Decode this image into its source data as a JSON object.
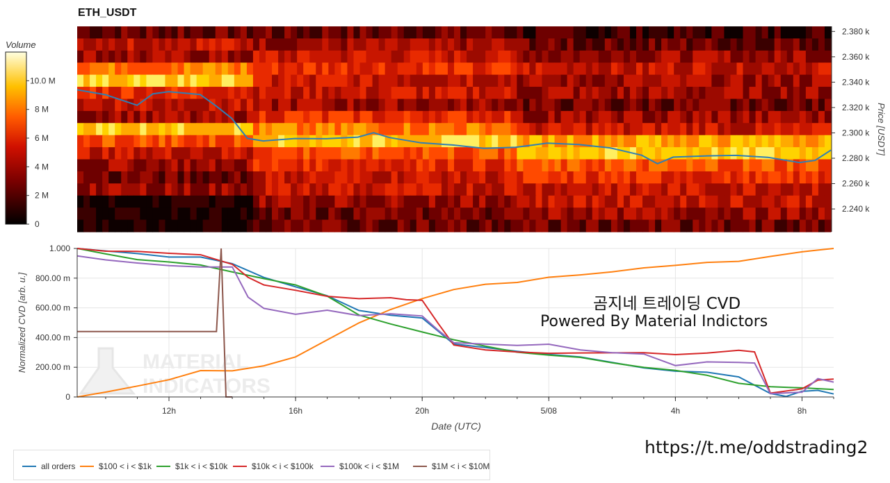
{
  "title": "ETH_USDT",
  "colorbar": {
    "title": "Volume",
    "ticks": [
      "0",
      "2 M",
      "4 M",
      "6 M",
      "8 M",
      "10.0 M"
    ],
    "tick_values": [
      0,
      2,
      4,
      6,
      8,
      10
    ]
  },
  "heatmap": {
    "ylabel": "Price [USDT]",
    "y_ticks": [
      "2.240 k",
      "2.260 k",
      "2.280 k",
      "2.300 k",
      "2.320 k",
      "2.340 k",
      "2.360 k",
      "2.380 k"
    ],
    "y_tick_values": [
      2240,
      2260,
      2280,
      2300,
      2320,
      2340,
      2360,
      2380
    ],
    "price_line_color": "#2f7fb5"
  },
  "cvd": {
    "ylabel": "Normalized CVD [arb. u.]",
    "xlabel": "Date (UTC)",
    "y_ticks": [
      "0",
      "200.00 m",
      "400.00 m",
      "600.00 m",
      "800.00 m",
      "1.000"
    ],
    "y_tick_values": [
      0,
      0.2,
      0.4,
      0.6,
      0.8,
      1.0
    ],
    "x_ticks": [
      "12h",
      "16h",
      "20h",
      "5/08",
      "4h",
      "8h"
    ]
  },
  "watermark": {
    "line1": "MATERIAL",
    "line2": "INDICATORS"
  },
  "annotation": {
    "line1": "곰지네 트레이딩 CVD",
    "line2": "Powered By Material Indictors"
  },
  "url": "https://t.me/oddstrading2",
  "chart_data": [
    {
      "type": "heatmap",
      "title": "ETH_USDT",
      "ylabel": "Price [USDT]",
      "ylim": [
        2222,
        2384
      ],
      "colorbar_label": "Volume",
      "colorbar_range": [
        0,
        12000000
      ],
      "price_series": {
        "x_hours": [
          9.1,
          10,
          11,
          11.5,
          12,
          13,
          13.5,
          14,
          14.5,
          15,
          16,
          17,
          18,
          18.5,
          19,
          20,
          21,
          22,
          23,
          24,
          25,
          26,
          27,
          27.5,
          28,
          29,
          30,
          31,
          32,
          32.5,
          33
        ],
        "y": [
          2334,
          2330,
          2322,
          2330,
          2332,
          2330,
          2322,
          2312,
          2295,
          2294,
          2296,
          2295,
          2297,
          2300,
          2296,
          2292,
          2290,
          2288,
          2288,
          2292,
          2291,
          2288,
          2283,
          2276,
          2281,
          2282,
          2282,
          2280,
          2276,
          2279,
          2286
        ]
      }
    },
    {
      "type": "line",
      "title": "",
      "xlabel": "Date (UTC)",
      "ylabel": "Normalized CVD [arb. u.]",
      "ylim": [
        0,
        1.0
      ],
      "x_tick_labels": [
        "12h",
        "16h",
        "20h",
        "5/08",
        "4h",
        "8h"
      ],
      "x_tick_hours": [
        12,
        16,
        20,
        24,
        28,
        32
      ],
      "xlim_hours": [
        9.1,
        33.0
      ],
      "legend_position": "bottom-left",
      "series": [
        {
          "name": "all orders",
          "color": "#1f77b4",
          "x": [
            9.1,
            10,
            11,
            12,
            13,
            14,
            15,
            16,
            17,
            18,
            19,
            20,
            21,
            22,
            23,
            24,
            25,
            26,
            27,
            28,
            29,
            30,
            31,
            31.5,
            32,
            32.5,
            33
          ],
          "y": [
            1.0,
            0.98,
            0.96,
            0.95,
            0.94,
            0.9,
            0.8,
            0.75,
            0.68,
            0.58,
            0.55,
            0.54,
            0.36,
            0.33,
            0.31,
            0.29,
            0.26,
            0.24,
            0.2,
            0.18,
            0.16,
            0.13,
            0.02,
            0.01,
            0.04,
            0.05,
            0.02
          ]
        },
        {
          "name": "$100 < i < $1k",
          "color": "#ff7f0e",
          "x": [
            9.1,
            10,
            11,
            12,
            13,
            14,
            15,
            16,
            17,
            18,
            19,
            20,
            21,
            22,
            23,
            24,
            25,
            26,
            27,
            28,
            29,
            30,
            31,
            32,
            32.5,
            33
          ],
          "y": [
            0.0,
            0.03,
            0.07,
            0.12,
            0.17,
            0.18,
            0.21,
            0.27,
            0.38,
            0.5,
            0.58,
            0.66,
            0.72,
            0.75,
            0.77,
            0.8,
            0.83,
            0.85,
            0.87,
            0.88,
            0.9,
            0.92,
            0.94,
            0.98,
            0.99,
            1.0
          ]
        },
        {
          "name": "$1k < i < $10k",
          "color": "#2ca02c",
          "x": [
            9.1,
            10,
            11,
            12,
            13,
            14,
            15,
            16,
            17,
            18,
            19,
            20,
            21,
            22,
            23,
            24,
            25,
            26,
            27,
            28,
            29,
            30,
            31,
            32,
            33
          ],
          "y": [
            1.0,
            0.96,
            0.93,
            0.9,
            0.88,
            0.85,
            0.8,
            0.76,
            0.68,
            0.56,
            0.5,
            0.43,
            0.38,
            0.35,
            0.31,
            0.29,
            0.26,
            0.23,
            0.2,
            0.17,
            0.14,
            0.09,
            0.06,
            0.06,
            0.05
          ]
        },
        {
          "name": "$10k < i < $100k",
          "color": "#d62728",
          "x": [
            9.1,
            10,
            11,
            12,
            13,
            14,
            14.5,
            15,
            16,
            17,
            18,
            19,
            19.5,
            20,
            20.5,
            21,
            22,
            23,
            24,
            25,
            26,
            27,
            28,
            29,
            30,
            30.5,
            31,
            32,
            32.5,
            33
          ],
          "y": [
            1.0,
            0.99,
            0.98,
            0.97,
            0.96,
            0.9,
            0.8,
            0.76,
            0.72,
            0.68,
            0.67,
            0.66,
            0.65,
            0.65,
            0.5,
            0.35,
            0.32,
            0.31,
            0.3,
            0.29,
            0.29,
            0.3,
            0.28,
            0.3,
            0.31,
            0.3,
            0.02,
            0.05,
            0.12,
            0.12
          ]
        },
        {
          "name": "$100k < i < $1M",
          "color": "#9467bd",
          "x": [
            9.1,
            10,
            11,
            12,
            13,
            14,
            14.5,
            15,
            16,
            17,
            18,
            19,
            20,
            20.5,
            21,
            22,
            23,
            24,
            25,
            26,
            27,
            28,
            29,
            30,
            30.5,
            31,
            32,
            32.5,
            33
          ],
          "y": [
            0.95,
            0.93,
            0.91,
            0.88,
            0.87,
            0.88,
            0.68,
            0.6,
            0.55,
            0.58,
            0.55,
            0.56,
            0.55,
            0.45,
            0.36,
            0.36,
            0.35,
            0.36,
            0.32,
            0.3,
            0.29,
            0.22,
            0.24,
            0.24,
            0.22,
            0.02,
            0.03,
            0.12,
            0.1
          ]
        },
        {
          "name": "$1M < i < $10M",
          "color": "#8c564b",
          "x": [
            9.1,
            13.5,
            13.65,
            13.8,
            14.0
          ],
          "y": [
            0.44,
            0.44,
            1.0,
            0.0,
            0.0
          ]
        }
      ]
    }
  ]
}
